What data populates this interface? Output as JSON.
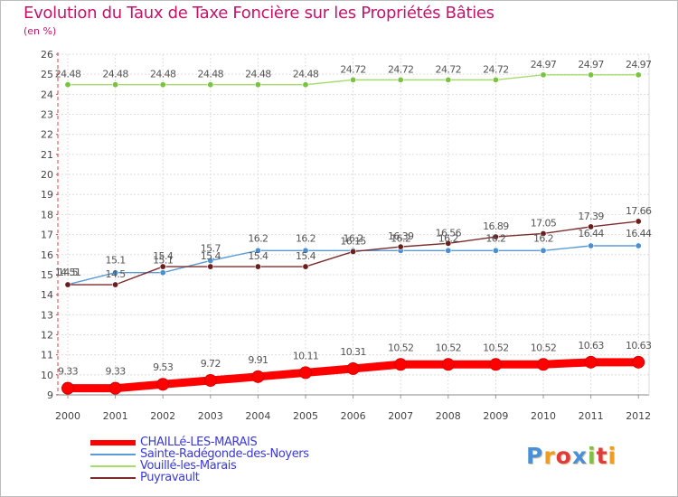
{
  "header": {
    "title": "Evolution du Taux de Taxe Foncière sur les Propriétés Bâties",
    "subtitle": "(en %)"
  },
  "brand": {
    "text": "Proxiti",
    "colors": [
      "#4a90d9",
      "#f29c1f",
      "#e03a3a",
      "#4a90d9",
      "#7cc242",
      "#e03a3a",
      "#f29c1f"
    ]
  },
  "chart_data": {
    "type": "line",
    "title": "Evolution du Taux de Taxe Foncière sur les Propriétés Bâties",
    "ylabel": "(en %)",
    "xlabel": "",
    "x": [
      "2000",
      "2001",
      "2002",
      "2003",
      "2004",
      "2005",
      "2006",
      "2007",
      "2008",
      "2009",
      "2010",
      "2011",
      "2012"
    ],
    "ylim": [
      9,
      26
    ],
    "yticks": [
      "9",
      "10",
      "11",
      "12",
      "13",
      "14",
      "15",
      "16",
      "17",
      "18",
      "19",
      "20",
      "21",
      "22",
      "23",
      "24",
      "25",
      "26"
    ],
    "grid": true,
    "legend_position": "bottom-left",
    "series": [
      {
        "name": "CHAILLé-LES-MARAIS",
        "color": "#ff0000",
        "values": [
          9.33,
          9.33,
          9.53,
          9.72,
          9.91,
          10.11,
          10.31,
          10.52,
          10.52,
          10.52,
          10.52,
          10.63,
          10.63
        ],
        "labels": [
          "9.33",
          "9.33",
          "9.53",
          "9.72",
          "9.91",
          "10.11",
          "10.31",
          "10.52",
          "10.52",
          "10.52",
          "10.52",
          "10.63",
          "10.63"
        ]
      },
      {
        "name": "Sainte-Radégonde-des-Noyers",
        "color": "#5b9bd5",
        "marker": "#4a8fd0",
        "values": [
          14.51,
          15.1,
          15.1,
          15.7,
          16.2,
          16.2,
          16.2,
          16.2,
          16.2,
          16.2,
          16.2,
          16.44,
          16.44
        ],
        "labels": [
          "14.51",
          "15.1",
          "15.1",
          "15.7",
          "16.2",
          "16.2",
          "16.2",
          "16.2",
          "16.2",
          "16.2",
          "16.2",
          "16.44",
          "16.44"
        ]
      },
      {
        "name": "Vouillé-les-Marais",
        "color": "#a6dc6b",
        "marker": "#7cc242",
        "values": [
          24.48,
          24.48,
          24.48,
          24.48,
          24.48,
          24.48,
          24.72,
          24.72,
          24.72,
          24.72,
          24.97,
          24.97,
          24.97
        ],
        "labels": [
          "24.48",
          "24.48",
          "24.48",
          "24.48",
          "24.48",
          "24.48",
          "24.72",
          "24.72",
          "24.72",
          "24.72",
          "24.97",
          "24.97",
          "24.97"
        ]
      },
      {
        "name": "Puyravault",
        "color": "#7b2c2c",
        "marker": "#6a1e1e",
        "values": [
          14.5,
          14.5,
          15.4,
          15.4,
          15.4,
          15.4,
          16.15,
          16.39,
          16.56,
          16.89,
          17.05,
          17.39,
          17.66
        ],
        "labels": [
          "14.5",
          "14.5",
          "15.4",
          "15.4",
          "15.4",
          "15.4",
          "16.15",
          "16.39",
          "16.56",
          "16.89",
          "17.05",
          "17.39",
          "17.66"
        ]
      }
    ]
  }
}
